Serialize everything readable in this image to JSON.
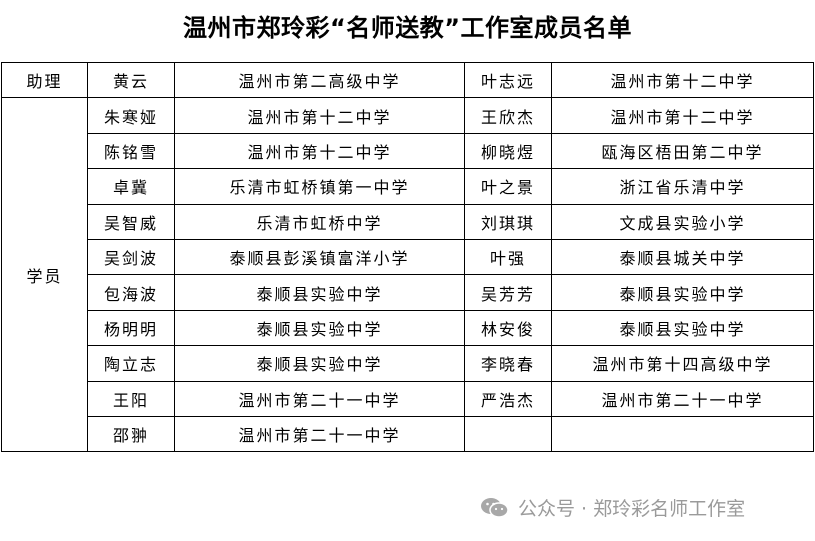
{
  "title": "温州市郑玲彩“名师送教”工作室成员名单",
  "roles": {
    "assistant": "助理",
    "member": "学员"
  },
  "rows": [
    {
      "name1": "黄云",
      "school1": "温州市第二高级中学",
      "name2": "叶志远",
      "school2": "温州市第十二中学"
    },
    {
      "name1": "朱寒娅",
      "school1": "温州市第十二中学",
      "name2": "王欣杰",
      "school2": "温州市第十二中学"
    },
    {
      "name1": "陈铭雪",
      "school1": "温州市第十二中学",
      "name2": "柳晓煜",
      "school2": "瓯海区梧田第二中学"
    },
    {
      "name1": "卓冀",
      "school1": "乐清市虹桥镇第一中学",
      "name2": "叶之景",
      "school2": "浙江省乐清中学"
    },
    {
      "name1": "吴智威",
      "school1": "乐清市虹桥中学",
      "name2": "刘琪琪",
      "school2": "文成县实验小学"
    },
    {
      "name1": "吴剑波",
      "school1": "泰顺县彭溪镇富洋小学",
      "name2": "叶强",
      "school2": "泰顺县城关中学"
    },
    {
      "name1": "包海波",
      "school1": "泰顺县实验中学",
      "name2": "吴芳芳",
      "school2": "泰顺县实验中学"
    },
    {
      "name1": "杨明明",
      "school1": "泰顺县实验中学",
      "name2": "林安俊",
      "school2": "泰顺县实验中学"
    },
    {
      "name1": "陶立志",
      "school1": "泰顺县实验中学",
      "name2": "李晓春",
      "school2": "温州市第十四高级中学"
    },
    {
      "name1": "王阳",
      "school1": "温州市第二十一中学",
      "name2": "严浩杰",
      "school2": "温州市第二十一中学"
    },
    {
      "name1": "邵翀",
      "school1": "温州市第二十一中学",
      "name2": "",
      "school2": ""
    }
  ],
  "watermark": {
    "icon": "wechat-icon",
    "text": "公众号 · 郑玲彩名师工作室"
  }
}
